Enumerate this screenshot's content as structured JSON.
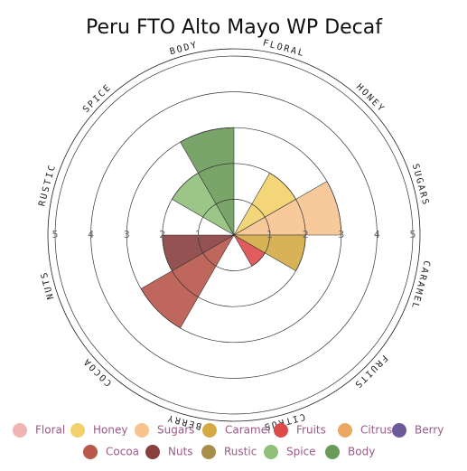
{
  "chart_data": {
    "type": "polar-area",
    "title": "Peru FTO Alto Mayo WP Decaf",
    "categories": [
      "Floral",
      "Honey",
      "Sugars",
      "Caramel",
      "Fruits",
      "Citrus",
      "Berry",
      "Cocoa",
      "Nuts",
      "Rustic",
      "Spice",
      "Body"
    ],
    "axis_labels": [
      "FLORAL",
      "HONEY",
      "SUGARS",
      "CARAMEL",
      "FRUITS",
      "CITRUS",
      "BERRY",
      "COCOA",
      "NUTS",
      "RUSTIC",
      "SPICE",
      "BODY"
    ],
    "values": [
      0,
      2,
      3,
      2,
      1,
      0,
      0,
      3,
      2,
      0,
      2,
      3
    ],
    "colors": [
      "#f0b4b4",
      "#f2d06b",
      "#f7c38f",
      "#d4aa45",
      "#de4a4a",
      "#eba862",
      "#6c5a98",
      "#b8574a",
      "#8a3f3f",
      "#a88e4a",
      "#90c07a",
      "#6a9b5a"
    ],
    "ylim": [
      0,
      5
    ],
    "yticks": [
      1,
      2,
      3,
      4,
      5
    ],
    "grid": true
  }
}
